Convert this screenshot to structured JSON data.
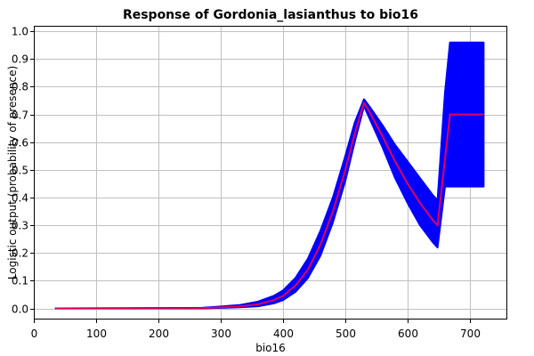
{
  "chart_data": {
    "type": "line",
    "title": "Response of Gordonia_lasianthus to bio16",
    "xlabel": "bio16",
    "ylabel": "Logistic output (probability of presence)",
    "xlim": [
      0,
      760
    ],
    "ylim": [
      -0.04,
      1.02
    ],
    "xticks": [
      0,
      100,
      200,
      300,
      400,
      500,
      600,
      700
    ],
    "yticks": [
      0.0,
      0.1,
      0.2,
      0.3,
      0.4,
      0.5,
      0.6,
      0.7,
      0.8,
      0.9,
      1.0
    ],
    "grid": true,
    "series": [
      {
        "role": "band",
        "color": "#0000ff",
        "points": [
          {
            "x": 35,
            "low": 0.0,
            "high": 0.0
          },
          {
            "x": 270,
            "low": 0.0,
            "high": 0.002
          },
          {
            "x": 330,
            "low": 0.004,
            "high": 0.012
          },
          {
            "x": 360,
            "low": 0.008,
            "high": 0.025
          },
          {
            "x": 385,
            "low": 0.018,
            "high": 0.045
          },
          {
            "x": 400,
            "low": 0.03,
            "high": 0.065
          },
          {
            "x": 420,
            "low": 0.06,
            "high": 0.11
          },
          {
            "x": 440,
            "low": 0.11,
            "high": 0.18
          },
          {
            "x": 460,
            "low": 0.19,
            "high": 0.28
          },
          {
            "x": 480,
            "low": 0.31,
            "high": 0.4
          },
          {
            "x": 500,
            "low": 0.46,
            "high": 0.55
          },
          {
            "x": 515,
            "low": 0.6,
            "high": 0.67
          },
          {
            "x": 530,
            "low": 0.73,
            "high": 0.755
          },
          {
            "x": 540,
            "low": 0.68,
            "high": 0.725
          },
          {
            "x": 560,
            "low": 0.58,
            "high": 0.66
          },
          {
            "x": 580,
            "low": 0.47,
            "high": 0.59
          },
          {
            "x": 600,
            "low": 0.38,
            "high": 0.53
          },
          {
            "x": 620,
            "low": 0.3,
            "high": 0.47
          },
          {
            "x": 640,
            "low": 0.24,
            "high": 0.41
          },
          {
            "x": 648,
            "low": 0.22,
            "high": 0.39
          },
          {
            "x": 660,
            "low": 0.44,
            "high": 0.78
          },
          {
            "x": 668,
            "low": 0.44,
            "high": 0.96
          },
          {
            "x": 722,
            "low": 0.44,
            "high": 0.96
          }
        ]
      },
      {
        "role": "mean",
        "color": "#e0005a",
        "points": [
          [
            35,
            0.0
          ],
          [
            270,
            0.001
          ],
          [
            330,
            0.007
          ],
          [
            360,
            0.015
          ],
          [
            385,
            0.03
          ],
          [
            400,
            0.045
          ],
          [
            420,
            0.083
          ],
          [
            440,
            0.14
          ],
          [
            460,
            0.23
          ],
          [
            480,
            0.35
          ],
          [
            500,
            0.5
          ],
          [
            515,
            0.63
          ],
          [
            530,
            0.742
          ],
          [
            540,
            0.705
          ],
          [
            560,
            0.62
          ],
          [
            580,
            0.53
          ],
          [
            600,
            0.45
          ],
          [
            620,
            0.38
          ],
          [
            640,
            0.32
          ],
          [
            648,
            0.3
          ],
          [
            668,
            0.7
          ],
          [
            722,
            0.7
          ]
        ]
      }
    ]
  }
}
